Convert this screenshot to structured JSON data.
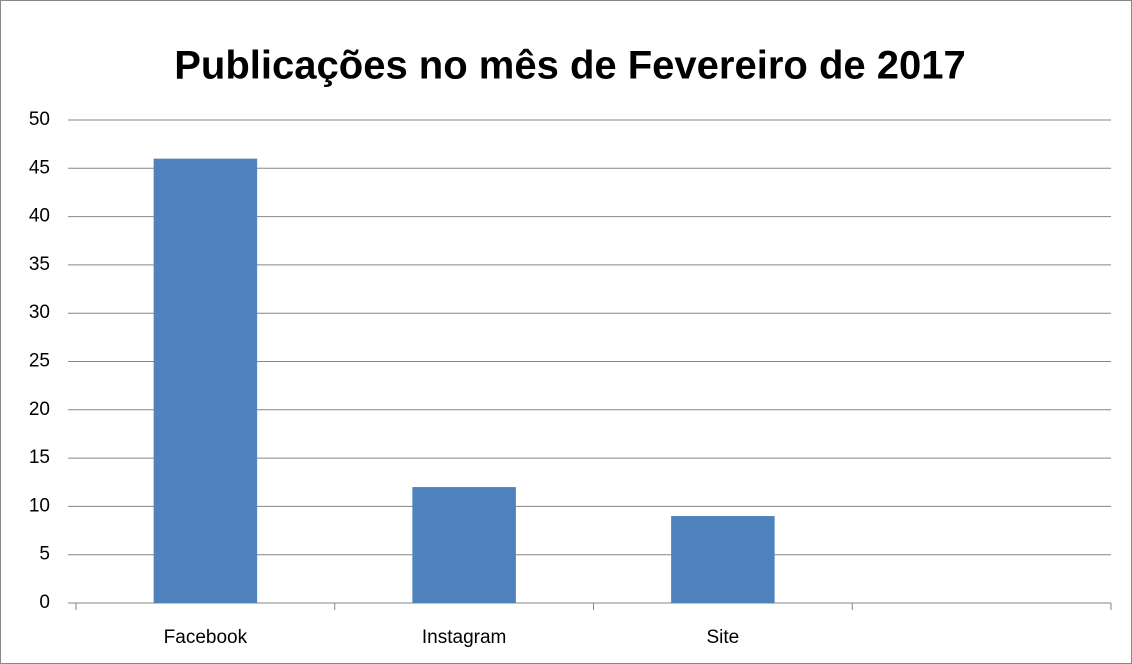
{
  "chart_data": {
    "type": "bar",
    "title": "Publicações no mês de Fevereiro de 2017",
    "categories": [
      "Facebook",
      "Instagram",
      "Site",
      null
    ],
    "values": [
      46,
      12,
      9,
      null
    ],
    "color": "#4f81bd",
    "ylim": [
      0,
      50
    ],
    "yticks": [
      0,
      5,
      10,
      15,
      20,
      25,
      30,
      35,
      40,
      45,
      50
    ],
    "grid": true
  }
}
